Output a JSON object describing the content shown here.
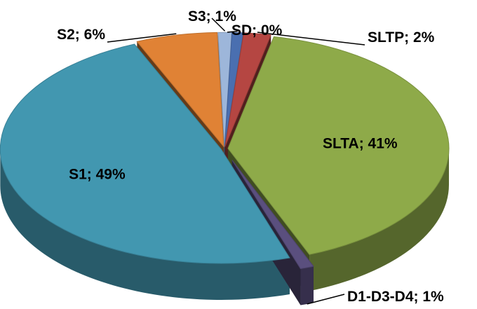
{
  "chart_data": {
    "type": "pie",
    "style": "3d-exploded",
    "title": "",
    "slices": [
      {
        "name": "SLTA",
        "value": 41,
        "percent_label": "41%",
        "label": "SLTA; 41%",
        "color": "#8EAA49",
        "label_pos": "inside"
      },
      {
        "name": "D1-D3-D4",
        "value": 1,
        "percent_label": "1%",
        "label": "D1-D3-D4; 1%",
        "color": "#5A4F7E",
        "label_pos": "outside-bottom"
      },
      {
        "name": "S1",
        "value": 49,
        "percent_label": "49%",
        "label": "S1; 49%",
        "color": "#4297B0",
        "label_pos": "inside"
      },
      {
        "name": "S2",
        "value": 6,
        "percent_label": "6%",
        "label": "S2; 6%",
        "color": "#E08235",
        "label_pos": "outside-top-left"
      },
      {
        "name": "S3",
        "value": 1,
        "percent_label": "1%",
        "label": "S3; 1%",
        "color": "#9DB6DA",
        "label_pos": "outside-top"
      },
      {
        "name": "SD",
        "value": 0,
        "percent_label": "0%",
        "label": "SD; 0%",
        "color": "#4A6FB0",
        "label_pos": "outside-top"
      },
      {
        "name": "SLTP",
        "value": 2,
        "percent_label": "2%",
        "label": "SLTP; 2%",
        "color": "#B54642",
        "label_pos": "outside-top-right"
      }
    ]
  }
}
